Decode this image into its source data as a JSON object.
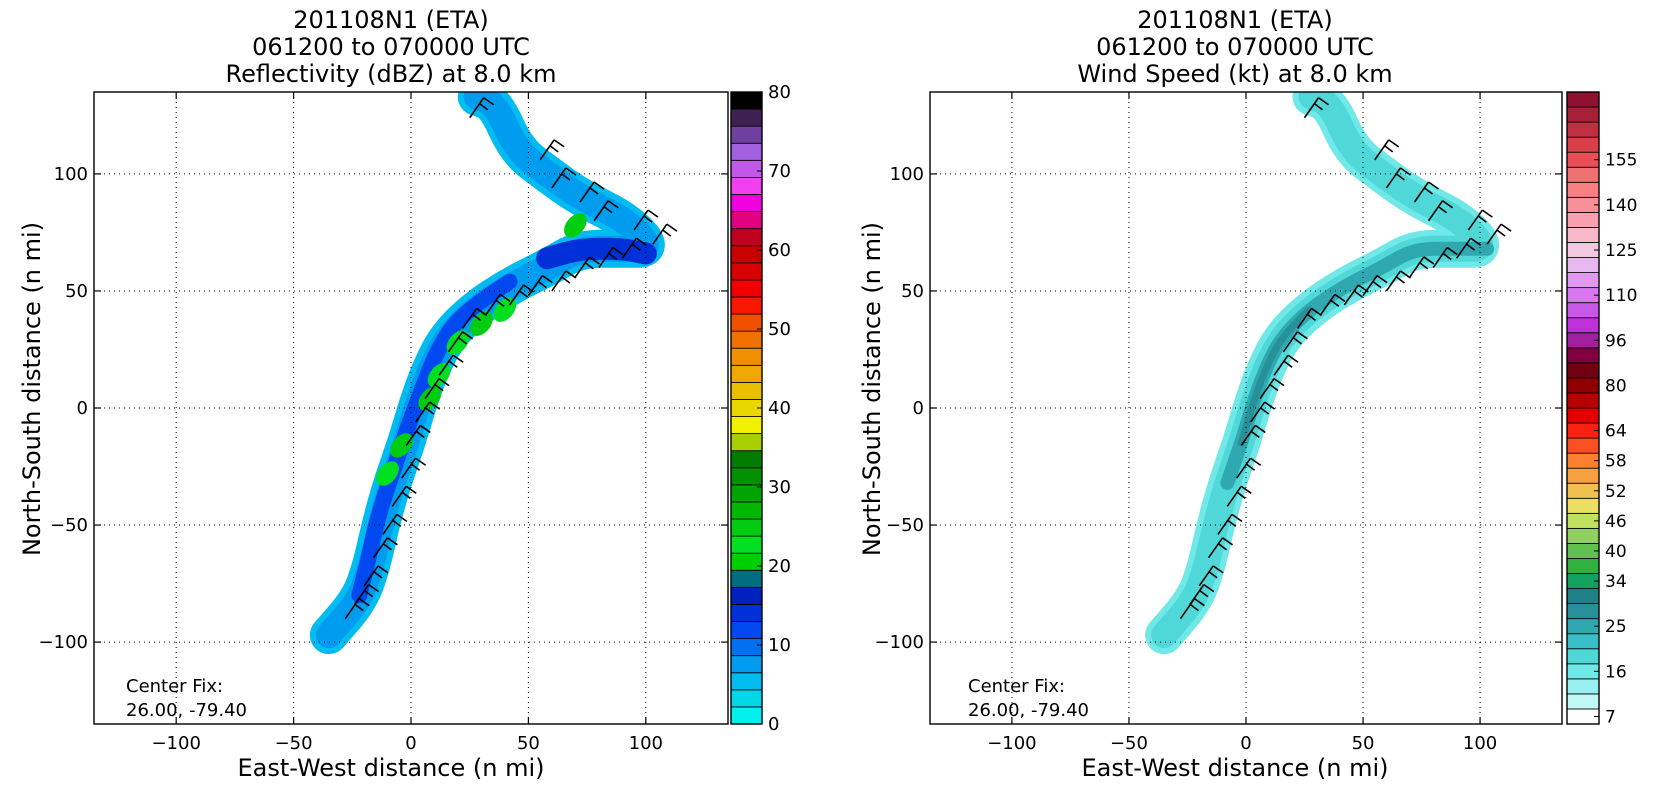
{
  "chart_data": [
    {
      "type": "heatmap",
      "title": [
        "201108N1 (ETA)",
        "061200 to 070000 UTC",
        "Reflectivity (dBZ) at 8.0 km"
      ],
      "xlabel": "East-West distance (n mi)",
      "ylabel": "North-South distance (n mi)",
      "xlim": [
        -135,
        135
      ],
      "ylim": [
        -135,
        135
      ],
      "xticks": [
        -100,
        -50,
        0,
        50,
        100
      ],
      "yticks": [
        -100,
        -50,
        0,
        50,
        100
      ],
      "xtick_labels": [
        "−100",
        "−50",
        "0",
        "50",
        "100"
      ],
      "ytick_labels": [
        "−100",
        "−50",
        "0",
        "50",
        "100"
      ],
      "grid": true,
      "annotation": [
        "Center Fix:",
        "26.00, -79.40"
      ],
      "colorbar": {
        "min": 0,
        "max": 80,
        "tick_values": [
          0,
          10,
          20,
          30,
          40,
          50,
          60,
          70,
          80
        ],
        "tick_labels": [
          "0",
          "10",
          "20",
          "30",
          "40",
          "50",
          "60",
          "70",
          "80"
        ],
        "colors": [
          "#00f0f0",
          "#00d8e8",
          "#00bcf0",
          "#009cf0",
          "#0070f0",
          "#0048f0",
          "#0030d8",
          "#0020c0",
          "#006e7e",
          "#00d000",
          "#00e020",
          "#00cc10",
          "#00b800",
          "#00a400",
          "#009000",
          "#007c00",
          "#a8d000",
          "#f0f000",
          "#e8d800",
          "#e8c000",
          "#f0a800",
          "#f09000",
          "#f07000",
          "#f05000",
          "#f81800",
          "#f00000",
          "#d80000",
          "#c80000",
          "#c00020",
          "#e00080",
          "#f000e0",
          "#f040f0",
          "#c058e8",
          "#a060e0",
          "#7040a0",
          "#402050",
          "#000000"
        ]
      },
      "field_intensity_dbz": {
        "track": [
          [
            28,
            133
          ],
          [
            36,
            130
          ],
          [
            45,
            110
          ],
          [
            58,
            100
          ],
          [
            72,
            90
          ],
          [
            92,
            80
          ],
          [
            103,
            68
          ],
          [
            90,
            68
          ],
          [
            72,
            68
          ],
          [
            58,
            60
          ],
          [
            42,
            52
          ],
          [
            27,
            42
          ],
          [
            15,
            30
          ],
          [
            8,
            16
          ],
          [
            3,
            2
          ],
          [
            -2,
            -15
          ],
          [
            -8,
            -32
          ],
          [
            -13,
            -50
          ],
          [
            -17,
            -68
          ],
          [
            -22,
            -82
          ],
          [
            -35,
            -97
          ]
        ],
        "core": [
          [
            58,
            64
          ],
          [
            72,
            68
          ],
          [
            90,
            68
          ],
          [
            100,
            66
          ],
          [
            42,
            54
          ],
          [
            30,
            46
          ],
          [
            18,
            36
          ],
          [
            10,
            22
          ],
          [
            4,
            6
          ],
          [
            -2,
            -10
          ],
          [
            -8,
            -28
          ],
          [
            -14,
            -46
          ],
          [
            -18,
            -64
          ],
          [
            -22,
            -80
          ]
        ],
        "convective": [
          [
            12,
            14
          ],
          [
            8,
            4
          ],
          [
            20,
            28
          ],
          [
            30,
            36
          ],
          [
            40,
            42
          ],
          [
            -4,
            -16
          ],
          [
            -10,
            -28
          ],
          [
            70,
            78
          ]
        ]
      },
      "wind_barbs": [
        [
          25,
          124
        ],
        [
          55,
          106
        ],
        [
          60,
          94
        ],
        [
          72,
          88
        ],
        [
          78,
          80
        ],
        [
          95,
          76
        ],
        [
          103,
          70
        ],
        [
          90,
          64
        ],
        [
          80,
          60
        ],
        [
          70,
          56
        ],
        [
          60,
          50
        ],
        [
          50,
          48
        ],
        [
          42,
          44
        ],
        [
          32,
          40
        ],
        [
          22,
          34
        ],
        [
          16,
          24
        ],
        [
          12,
          14
        ],
        [
          6,
          4
        ],
        [
          2,
          -6
        ],
        [
          -2,
          -16
        ],
        [
          -4,
          -30
        ],
        [
          -8,
          -42
        ],
        [
          -12,
          -54
        ],
        [
          -16,
          -64
        ],
        [
          -20,
          -76
        ],
        [
          -24,
          -84
        ],
        [
          -28,
          -90
        ]
      ]
    },
    {
      "type": "heatmap",
      "title": [
        "201108N1 (ETA)",
        "061200 to 070000 UTC",
        "Wind Speed (kt) at 8.0 km"
      ],
      "xlabel": "East-West distance (n mi)",
      "ylabel": "North-South distance (n mi)",
      "xlim": [
        -135,
        135
      ],
      "ylim": [
        -135,
        135
      ],
      "xticks": [
        -100,
        -50,
        0,
        50,
        100
      ],
      "yticks": [
        -100,
        -50,
        0,
        50,
        100
      ],
      "xtick_labels": [
        "−100",
        "−50",
        "0",
        "50",
        "100"
      ],
      "ytick_labels": [
        "−100",
        "−50",
        "0",
        "50",
        "100"
      ],
      "grid": true,
      "annotation": [
        "Center Fix:",
        "26.00, -79.40"
      ],
      "colorbar": {
        "tick_labels": [
          "7",
          "16",
          "25",
          "34",
          "40",
          "46",
          "52",
          "58",
          "64",
          "80",
          "96",
          "110",
          "125",
          "140",
          "155"
        ],
        "tick_bin_index": [
          0,
          3,
          6,
          9,
          11,
          13,
          15,
          17,
          19,
          22,
          25,
          28,
          31,
          34,
          37
        ],
        "colors": [
          "#ffffff",
          "#c0f8f8",
          "#98f0f0",
          "#70e8e8",
          "#50d8d8",
          "#38c0c8",
          "#30a8b0",
          "#289098",
          "#208088",
          "#10a060",
          "#30b040",
          "#60c050",
          "#90d060",
          "#c0e060",
          "#e8e060",
          "#f0c050",
          "#f8a040",
          "#f88030",
          "#f85020",
          "#f82010",
          "#e00000",
          "#b80000",
          "#900000",
          "#700010",
          "#800040",
          "#a020a0",
          "#c030d8",
          "#c858e8",
          "#d878f0",
          "#e098f0",
          "#e8b8f0",
          "#f0c8e0",
          "#f8b8c8",
          "#f8a0b0",
          "#f89098",
          "#f88080",
          "#f07070",
          "#e85058",
          "#d84048",
          "#c03040",
          "#a82038",
          "#901030"
        ]
      },
      "wind_barbs": [
        [
          25,
          124
        ],
        [
          55,
          106
        ],
        [
          60,
          94
        ],
        [
          72,
          88
        ],
        [
          78,
          80
        ],
        [
          95,
          76
        ],
        [
          103,
          70
        ],
        [
          90,
          64
        ],
        [
          80,
          60
        ],
        [
          70,
          56
        ],
        [
          60,
          50
        ],
        [
          50,
          48
        ],
        [
          42,
          44
        ],
        [
          32,
          40
        ],
        [
          22,
          34
        ],
        [
          16,
          24
        ],
        [
          12,
          14
        ],
        [
          6,
          4
        ],
        [
          2,
          -6
        ],
        [
          -2,
          -16
        ],
        [
          -4,
          -30
        ],
        [
          -8,
          -42
        ],
        [
          -12,
          -54
        ],
        [
          -16,
          -64
        ],
        [
          -20,
          -76
        ],
        [
          -24,
          -84
        ],
        [
          -28,
          -90
        ]
      ]
    }
  ]
}
